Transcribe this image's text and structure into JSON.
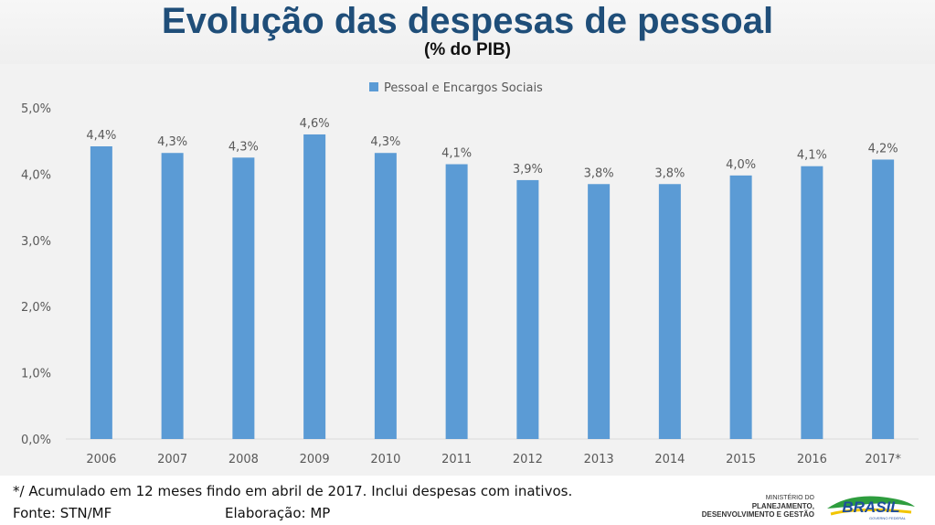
{
  "header": {
    "title": "Evolução das despesas de pessoal",
    "subtitle": "(% do PIB)"
  },
  "chart_data": {
    "type": "bar",
    "title": "Evolução das despesas de pessoal",
    "subtitle": "(% do PIB)",
    "legend": "Pessoal e Encargos Sociais",
    "legend_position": "top",
    "categories": [
      "2006",
      "2007",
      "2008",
      "2009",
      "2010",
      "2011",
      "2012",
      "2013",
      "2014",
      "2015",
      "2016",
      "2017*"
    ],
    "values": [
      4.42,
      4.32,
      4.25,
      4.6,
      4.32,
      4.15,
      3.91,
      3.85,
      3.85,
      3.98,
      4.12,
      4.22
    ],
    "value_labels": [
      "4,4%",
      "4,3%",
      "4,3%",
      "4,6%",
      "4,3%",
      "4,1%",
      "3,9%",
      "3,8%",
      "3,8%",
      "4,0%",
      "4,1%",
      "4,2%"
    ],
    "yticks": [
      0,
      1,
      2,
      3,
      4,
      5
    ],
    "ytick_labels": [
      "0,0%",
      "1,0%",
      "2,0%",
      "3,0%",
      "4,0%",
      "5,0%"
    ],
    "ylim": [
      0,
      5
    ],
    "xlabel": "",
    "ylabel": "",
    "grid": false,
    "bar_color": "#5b9bd5"
  },
  "footer": {
    "note": "*/ Acumulado em 12 meses findo em abril de 2017. Inclui despesas com inativos.",
    "source": "Fonte: STN/MF",
    "credit": "Elaboração: MP",
    "ministry_line1": "MINISTÉRIO DO",
    "ministry_line2": "PLANEJAMENTO,",
    "ministry_line3": "DESENVOLVIMENTO E GESTÃO",
    "logo_text": "BRASIL",
    "logo_caption": "GOVERNO FEDERAL"
  },
  "colors": {
    "title": "#1f4e79",
    "bar": "#5b9bd5",
    "plot_background": "#f2f2f2",
    "text": "#595959"
  }
}
